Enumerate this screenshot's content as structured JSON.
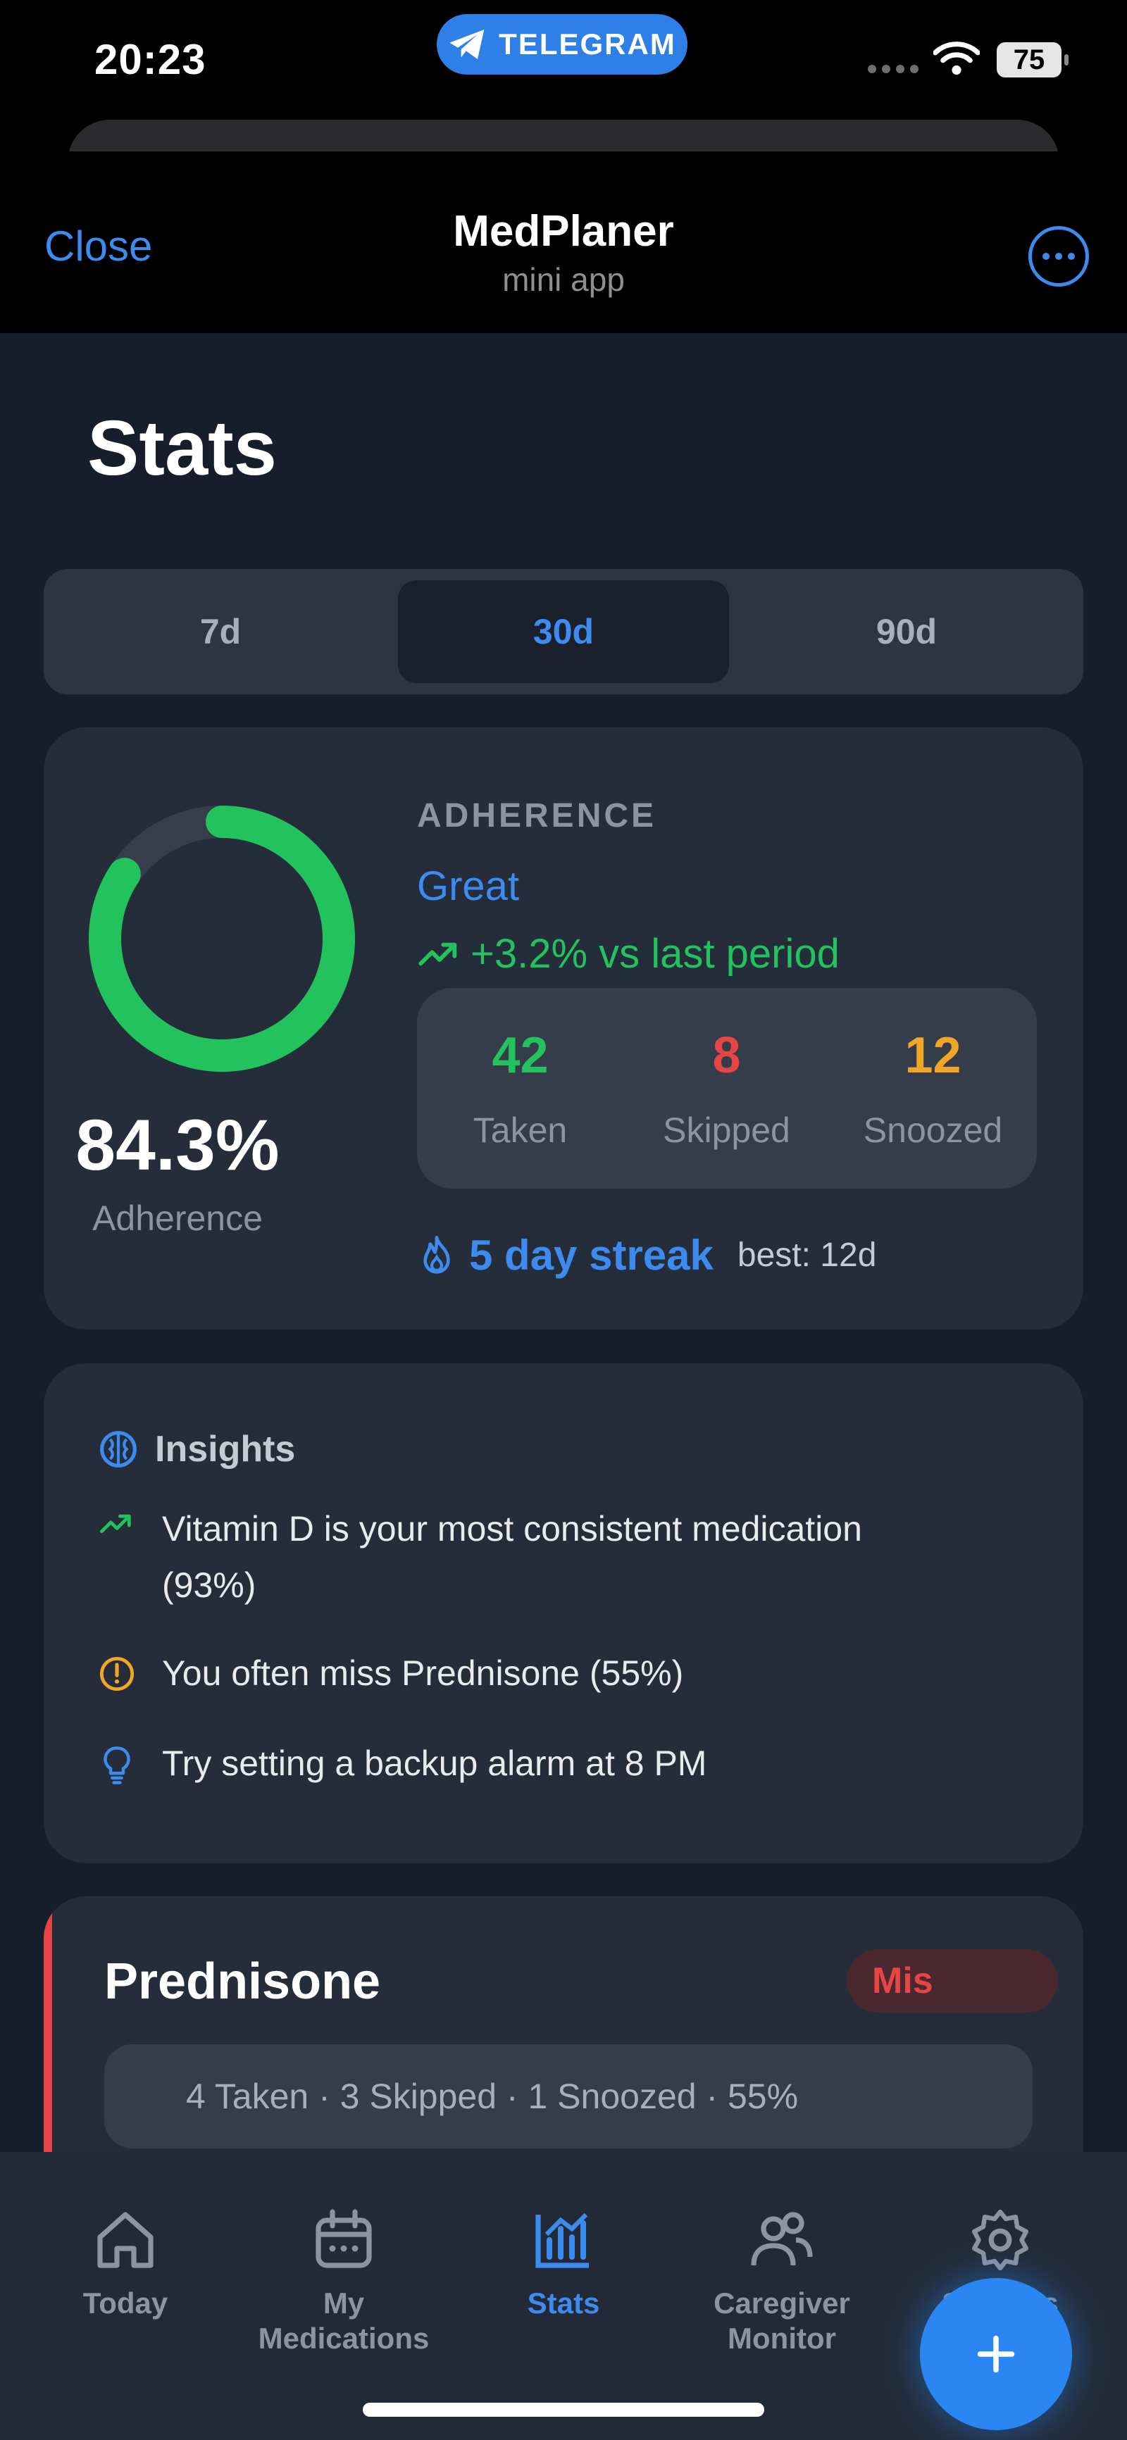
{
  "status_bar": {
    "time": "20:23",
    "app_pill": "TELEGRAM",
    "battery": "75"
  },
  "header": {
    "close": "Close",
    "title": "MedPlaner",
    "subtitle": "mini app"
  },
  "page": {
    "title": "Stats"
  },
  "period_tabs": [
    {
      "label": "7d",
      "active": false
    },
    {
      "label": "30d",
      "active": true
    },
    {
      "label": "90d",
      "active": false
    }
  ],
  "adherence": {
    "percent_value": 84.3,
    "percent_text": "84.3%",
    "label": "Adherence",
    "heading": "ADHERENCE",
    "grade": "Great",
    "trend": "+3.2% vs last period",
    "stats": [
      {
        "value": "42",
        "label": "Taken",
        "color": "#22c35c"
      },
      {
        "value": "8",
        "label": "Skipped",
        "color": "#e64545"
      },
      {
        "value": "12",
        "label": "Snoozed",
        "color": "#f2a626"
      }
    ],
    "streak": "5 day streak",
    "best": "best: 12d"
  },
  "insights": {
    "title": "Insights",
    "items": [
      {
        "icon": "trend-up-icon",
        "line1": "Vitamin D is your most consistent medication",
        "line2": "(93%)"
      },
      {
        "icon": "warning-icon",
        "line1": "You often miss Prednisone (55%)"
      },
      {
        "icon": "lightbulb-icon",
        "line1": "Try setting a backup alarm at 8 PM"
      }
    ]
  },
  "medication": {
    "name": "Prednisone",
    "badge": "Mis",
    "summary": "4 Taken · 3 Skipped · 1 Snoozed · 55%"
  },
  "tabs": [
    {
      "icon": "home-icon",
      "label": "Today",
      "active": false
    },
    {
      "icon": "calendar-icon",
      "label": "My Medications",
      "active": false
    },
    {
      "icon": "bar-chart-icon",
      "label": "Stats",
      "active": true
    },
    {
      "icon": "users-icon",
      "label": "Caregiver Monitor",
      "active": false
    },
    {
      "icon": "gear-icon",
      "label": "Settings",
      "active": false
    }
  ],
  "colors": {
    "accent": "#3e8bf0",
    "success": "#22c35c",
    "danger": "#e64545",
    "warning": "#f2a626",
    "background": "#171e2b",
    "card": "#252d3b"
  }
}
